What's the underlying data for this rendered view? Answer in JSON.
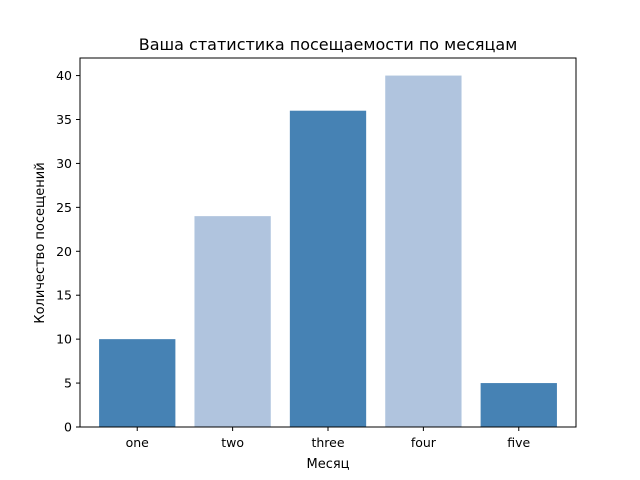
{
  "colors": {
    "dark": "#4682b4",
    "light": "#b0c4de",
    "axis": "#000000",
    "background": "#ffffff"
  },
  "chart_data": {
    "type": "bar",
    "title": "Ваша статистика посещаемости по месяцам",
    "xlabel": "Месяц",
    "ylabel": "Количество посещений",
    "categories": [
      "one",
      "two",
      "three",
      "four",
      "five"
    ],
    "values": [
      10,
      24,
      36,
      40,
      5
    ],
    "bar_colors": [
      "#4682b4",
      "#b0c4de",
      "#4682b4",
      "#b0c4de",
      "#4682b4"
    ],
    "ylim": [
      0,
      42
    ],
    "yticks": [
      0,
      5,
      10,
      15,
      20,
      25,
      30,
      35,
      40
    ],
    "grid": false,
    "legend": "none"
  }
}
